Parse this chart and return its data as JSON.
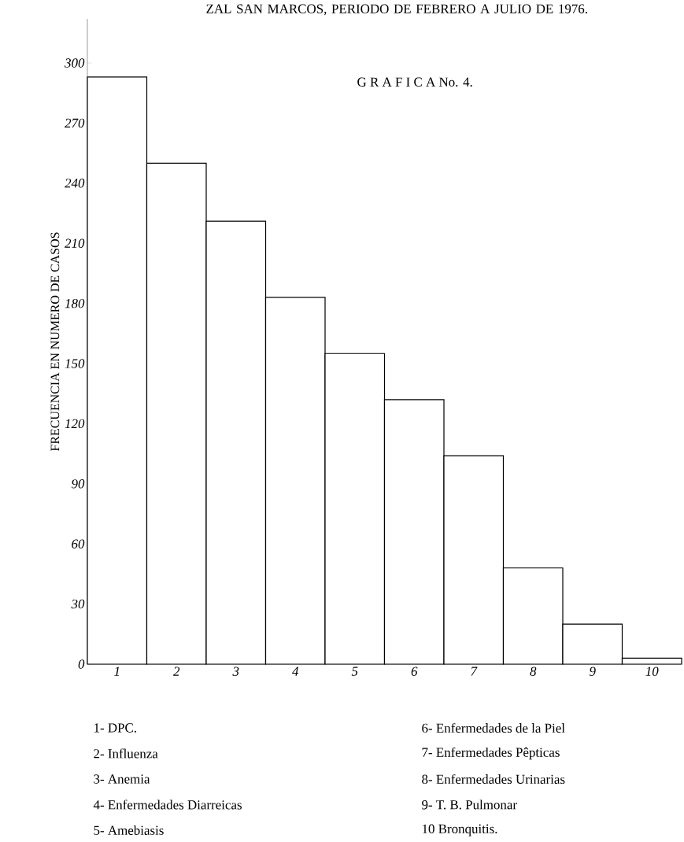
{
  "chart_data": {
    "type": "bar",
    "title": "ZAL SAN MARCOS, PERIODO DE FEBRERO A JULIO DE 1976.",
    "subtitle": "G R A F I C A No. 4.",
    "ylabel": "FRECUENCIA EN NUMERO DE CASOS",
    "categories": [
      "1",
      "2",
      "3",
      "4",
      "5",
      "6",
      "7",
      "8",
      "9",
      "10"
    ],
    "values": [
      293,
      250,
      221,
      183,
      155,
      132,
      104,
      48,
      20,
      3
    ],
    "color": "#ffffff",
    "ylim": [
      0,
      322
    ],
    "yticks": [
      0,
      30,
      60,
      90,
      120,
      150,
      180,
      210,
      240,
      270,
      300
    ],
    "annotations": [
      "1- DPC.",
      "2- Influenza",
      "3- Anemia",
      "4- Enfermedades Diarreicas",
      "5- Amebiasis",
      "6- Enfermedades de la Piel",
      "7- Enfermedades Pêpticas",
      "8- Enfermedades Urinarias",
      "9- T. B. Pulmonar",
      "10 Bronquitis."
    ],
    "grid": false
  }
}
